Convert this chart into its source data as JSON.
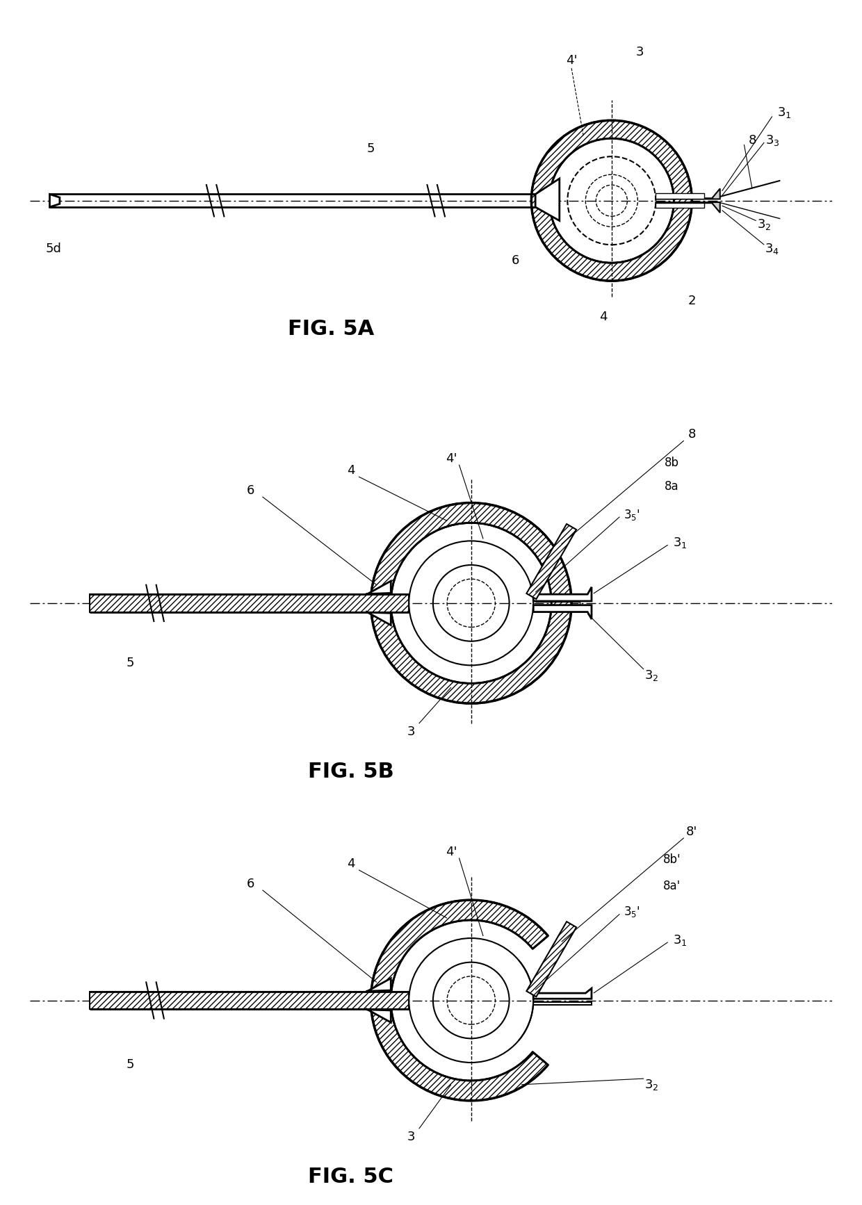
{
  "bg_color": "#ffffff",
  "line_color": "#000000",
  "fig_labels": [
    "FIG. 5A",
    "FIG. 5B",
    "FIG. 5C"
  ],
  "fig_label_fontsize": 22,
  "annotation_fontsize": 13,
  "figsize": [
    12.4,
    17.34
  ],
  "dpi": 100
}
